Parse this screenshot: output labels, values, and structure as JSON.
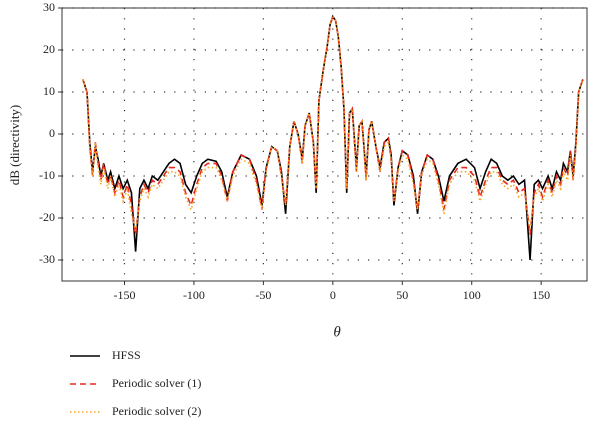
{
  "chart_data": {
    "type": "line",
    "xlabel": "θ",
    "ylabel": "dB (directivity)",
    "xlim": [
      -195,
      183
    ],
    "ylim": [
      -35,
      30
    ],
    "xticks": [
      -150,
      -100,
      -50,
      0,
      50,
      100,
      150
    ],
    "yticks": [
      -30,
      -20,
      -10,
      0,
      10,
      20,
      30
    ],
    "grid": true,
    "x": [
      -180,
      -177,
      -175,
      -173,
      -171,
      -169,
      -167,
      -165,
      -162,
      -160,
      -157,
      -154,
      -151,
      -148,
      -145,
      -142,
      -139,
      -136,
      -133,
      -130,
      -126,
      -122,
      -118,
      -114,
      -110,
      -106,
      -102,
      -98,
      -94,
      -90,
      -84,
      -80,
      -76,
      -72,
      -66,
      -60,
      -55,
      -51,
      -48,
      -44,
      -40,
      -37,
      -34,
      -31,
      -28,
      -25,
      -22,
      -20,
      -17,
      -14,
      -12,
      -10,
      -7,
      -4,
      -2,
      0,
      2,
      4,
      6,
      8,
      10,
      12,
      14,
      17,
      19,
      21,
      24,
      26,
      28,
      31,
      34,
      37,
      40,
      42,
      44,
      47,
      50,
      54,
      58,
      61,
      64,
      68,
      72,
      76,
      80,
      84,
      90,
      96,
      102,
      106,
      110,
      114,
      118,
      122,
      126,
      130,
      134,
      138,
      142,
      145,
      148,
      151,
      155,
      158,
      161,
      164,
      166,
      169,
      171,
      173,
      175,
      177,
      180
    ],
    "series": [
      {
        "name": "HFSS",
        "color": "#000000",
        "style": "solid",
        "values": [
          13,
          10,
          -2,
          -9,
          -3,
          -6,
          -10,
          -7,
          -11,
          -9,
          -13,
          -10,
          -13,
          -11,
          -14,
          -28,
          -13,
          -11,
          -13,
          -10,
          -11,
          -9,
          -7,
          -6,
          -7,
          -12,
          -14,
          -10,
          -7,
          -6,
          -6.5,
          -9,
          -15,
          -9,
          -5,
          -6,
          -10,
          -17,
          -8,
          -3,
          -4,
          -9,
          -19,
          -3,
          3,
          0,
          -6,
          2,
          5,
          -2,
          -14,
          8,
          15,
          21,
          26,
          28,
          27,
          23,
          16,
          6,
          -14,
          5,
          6,
          -8,
          2,
          3,
          -10,
          1,
          3,
          -3,
          -8,
          -2,
          -1,
          -5,
          -17,
          -8,
          -4,
          -5,
          -10,
          -19,
          -9,
          -5,
          -6,
          -10,
          -16,
          -10,
          -7,
          -6,
          -8,
          -13,
          -9,
          -6,
          -7,
          -10,
          -11,
          -10,
          -12,
          -11,
          -30,
          -12,
          -11,
          -13,
          -10,
          -13,
          -9,
          -11,
          -7,
          -9,
          -4,
          -10,
          -2,
          10,
          13
        ]
      },
      {
        "name": "Periodic solver (1)",
        "color": "#e8281e",
        "style": "dashed",
        "values": [
          13,
          10,
          -3,
          -10,
          -2,
          -7,
          -11,
          -7,
          -12,
          -10,
          -14,
          -11,
          -15,
          -12,
          -17,
          -24,
          -15,
          -12,
          -14,
          -11,
          -12,
          -10,
          -8,
          -8,
          -9,
          -14,
          -17,
          -12,
          -8,
          -7,
          -7,
          -10,
          -16,
          -9,
          -5,
          -6,
          -11,
          -18,
          -8,
          -3,
          -4,
          -10,
          -17,
          -3,
          3,
          0,
          -7,
          2,
          5,
          -2,
          -13,
          8,
          15,
          21,
          26,
          28,
          27,
          23,
          16,
          6,
          -13,
          5,
          6,
          -9,
          2,
          3,
          -11,
          1,
          3,
          -3,
          -9,
          -2,
          -1,
          -6,
          -16,
          -8,
          -4,
          -5,
          -11,
          -18,
          -9,
          -5,
          -6,
          -11,
          -18,
          -11,
          -8,
          -8,
          -10,
          -15,
          -11,
          -8,
          -8,
          -11,
          -12,
          -11,
          -14,
          -13,
          -24,
          -14,
          -12,
          -15,
          -11,
          -14,
          -10,
          -12,
          -8,
          -10,
          -4,
          -11,
          -3,
          10,
          13
        ]
      },
      {
        "name": "Periodic solver (2)",
        "color": "#f5a623",
        "style": "dotted",
        "values": [
          13,
          10,
          -3,
          -10,
          -2,
          -8,
          -12,
          -8,
          -13,
          -10,
          -15,
          -12,
          -16,
          -13,
          -19,
          -23,
          -16,
          -13,
          -15,
          -12,
          -13,
          -11,
          -9,
          -9,
          -10,
          -15,
          -18,
          -13,
          -9,
          -8,
          -8,
          -11,
          -16,
          -10,
          -6,
          -7,
          -12,
          -18,
          -9,
          -3,
          -4,
          -10,
          -17,
          -3,
          3,
          0,
          -7,
          2,
          5,
          -2,
          -13,
          8,
          15,
          21,
          26,
          28,
          27,
          23,
          16,
          6,
          -13,
          5,
          6,
          -9,
          2,
          3,
          -11,
          1,
          3,
          -3,
          -9,
          -3,
          -2,
          -6,
          -16,
          -9,
          -5,
          -6,
          -12,
          -18,
          -10,
          -6,
          -7,
          -12,
          -19,
          -12,
          -9,
          -9,
          -11,
          -16,
          -12,
          -9,
          -9,
          -12,
          -13,
          -12,
          -15,
          -14,
          -23,
          -15,
          -13,
          -16,
          -12,
          -15,
          -11,
          -13,
          -9,
          -11,
          -5,
          -11,
          -3,
          10,
          13
        ]
      }
    ]
  }
}
